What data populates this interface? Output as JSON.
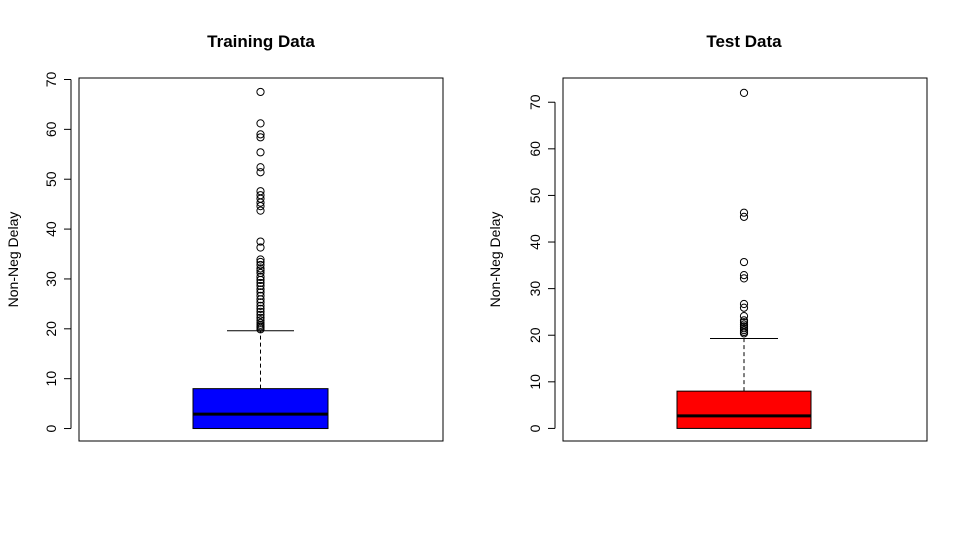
{
  "chart_data": [
    {
      "type": "box",
      "title": "Training Data",
      "xlabel": "",
      "ylabel": "Non-Neg Delay",
      "ylim": [
        -2.5,
        70.3
      ],
      "yticks": [
        0,
        10,
        20,
        30,
        40,
        50,
        60,
        70
      ],
      "box_color": "#0000ff",
      "box": {
        "min": 0,
        "q1": 0,
        "median": 2.9,
        "q3": 8,
        "whisker_high": 19.6
      },
      "outliers": [
        67.5,
        61.2,
        59,
        58.4,
        55.4,
        52.4,
        51.4,
        47.6,
        46.8,
        46.1,
        45.3,
        44.6,
        43.7,
        37.5,
        36.3,
        33.9,
        33.4,
        32.8,
        32.1,
        31.7,
        31.2,
        30.4,
        29.8,
        29.2,
        28.6,
        27.9,
        27.3,
        26.6,
        25.9,
        25.3,
        24.6,
        24.0,
        23.4,
        22.8,
        22.2,
        21.7,
        21.2,
        20.8,
        20.5,
        20.2,
        19.9
      ]
    },
    {
      "type": "box",
      "title": "Test Data",
      "xlabel": "",
      "ylabel": "Non-Neg Delay",
      "ylim": [
        -2.7,
        75.2
      ],
      "yticks": [
        0,
        10,
        20,
        30,
        40,
        50,
        60,
        70
      ],
      "box_color": "#ff0000",
      "box": {
        "min": 0,
        "q1": 0,
        "median": 2.7,
        "q3": 8,
        "whisker_high": 19.3
      },
      "outliers": [
        72,
        46.3,
        45.4,
        35.7,
        32.9,
        32.2,
        26.7,
        25.9,
        24.1,
        23.2,
        22.8,
        22.3,
        21.9,
        21.5,
        21.1,
        20.7,
        20.4
      ]
    }
  ]
}
